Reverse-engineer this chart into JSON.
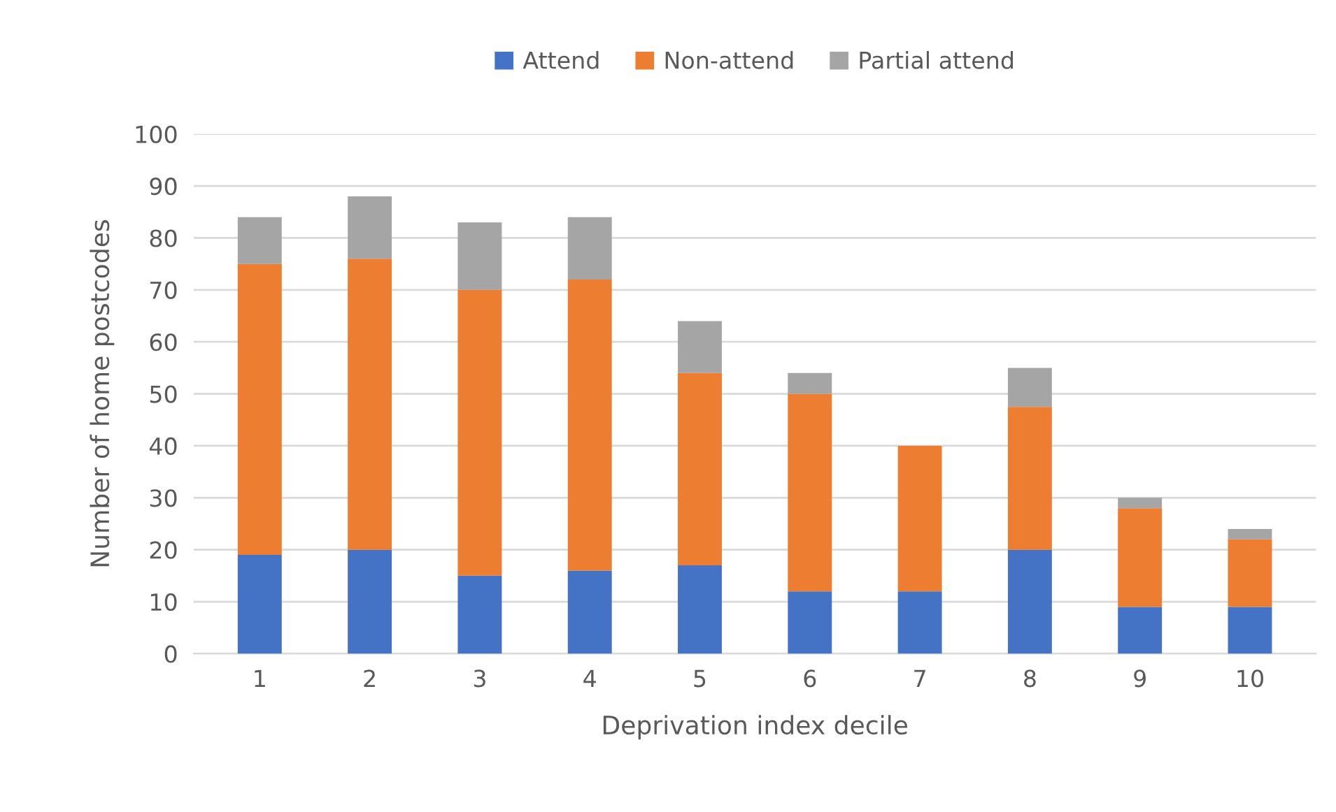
{
  "chart_data": {
    "type": "bar",
    "stacked": true,
    "xlabel": "Deprivation index decile",
    "ylabel": "Number of home postcodes",
    "categories": [
      "1",
      "2",
      "3",
      "4",
      "5",
      "6",
      "7",
      "8",
      "9",
      "10"
    ],
    "series": [
      {
        "name": "Attend",
        "color": "#4472c4",
        "values": [
          19,
          20,
          15,
          16,
          17,
          12,
          12,
          20,
          9,
          9
        ]
      },
      {
        "name": "Non-attend",
        "color": "#ed7d31",
        "values": [
          56,
          56,
          55,
          56,
          37,
          38,
          28,
          27.5,
          19,
          13
        ]
      },
      {
        "name": "Partial attend",
        "color": "#a5a5a5",
        "values": [
          9,
          12,
          13,
          12,
          10,
          4,
          0,
          7.5,
          2,
          2
        ]
      }
    ],
    "ylim": [
      0,
      100
    ],
    "yticks": [
      0,
      10,
      20,
      30,
      40,
      50,
      60,
      70,
      80,
      90,
      100
    ],
    "grid": "y",
    "legend": "top"
  }
}
